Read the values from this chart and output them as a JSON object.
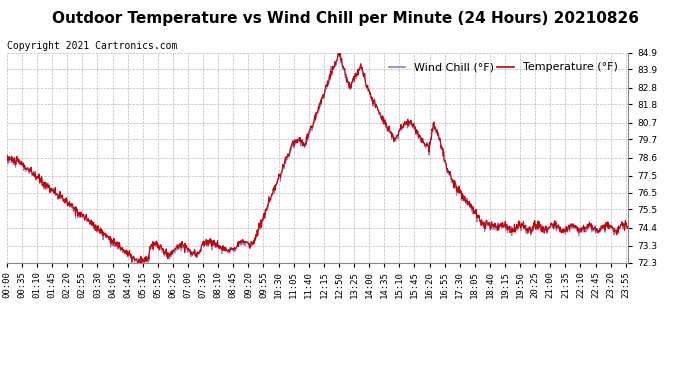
{
  "title": "Outdoor Temperature vs Wind Chill per Minute (24 Hours) 20210826",
  "copyright": "Copyright 2021 Cartronics.com",
  "legend_wind_chill": "Wind Chill (°F)",
  "legend_temperature": "Temperature (°F)",
  "wind_chill_color": "#8888cc",
  "temperature_color": "#cc0000",
  "background_color": "#ffffff",
  "grid_color": "#aaaaaa",
  "ylim_min": 72.3,
  "ylim_max": 84.9,
  "yticks": [
    72.3,
    73.3,
    74.4,
    75.5,
    76.5,
    77.5,
    78.6,
    79.7,
    80.7,
    81.8,
    82.8,
    83.9,
    84.9
  ],
  "title_fontsize": 11,
  "copyright_fontsize": 7,
  "legend_fontsize": 8,
  "tick_fontsize": 6.5,
  "line_width": 0.8,
  "xtick_interval_minutes": 35
}
